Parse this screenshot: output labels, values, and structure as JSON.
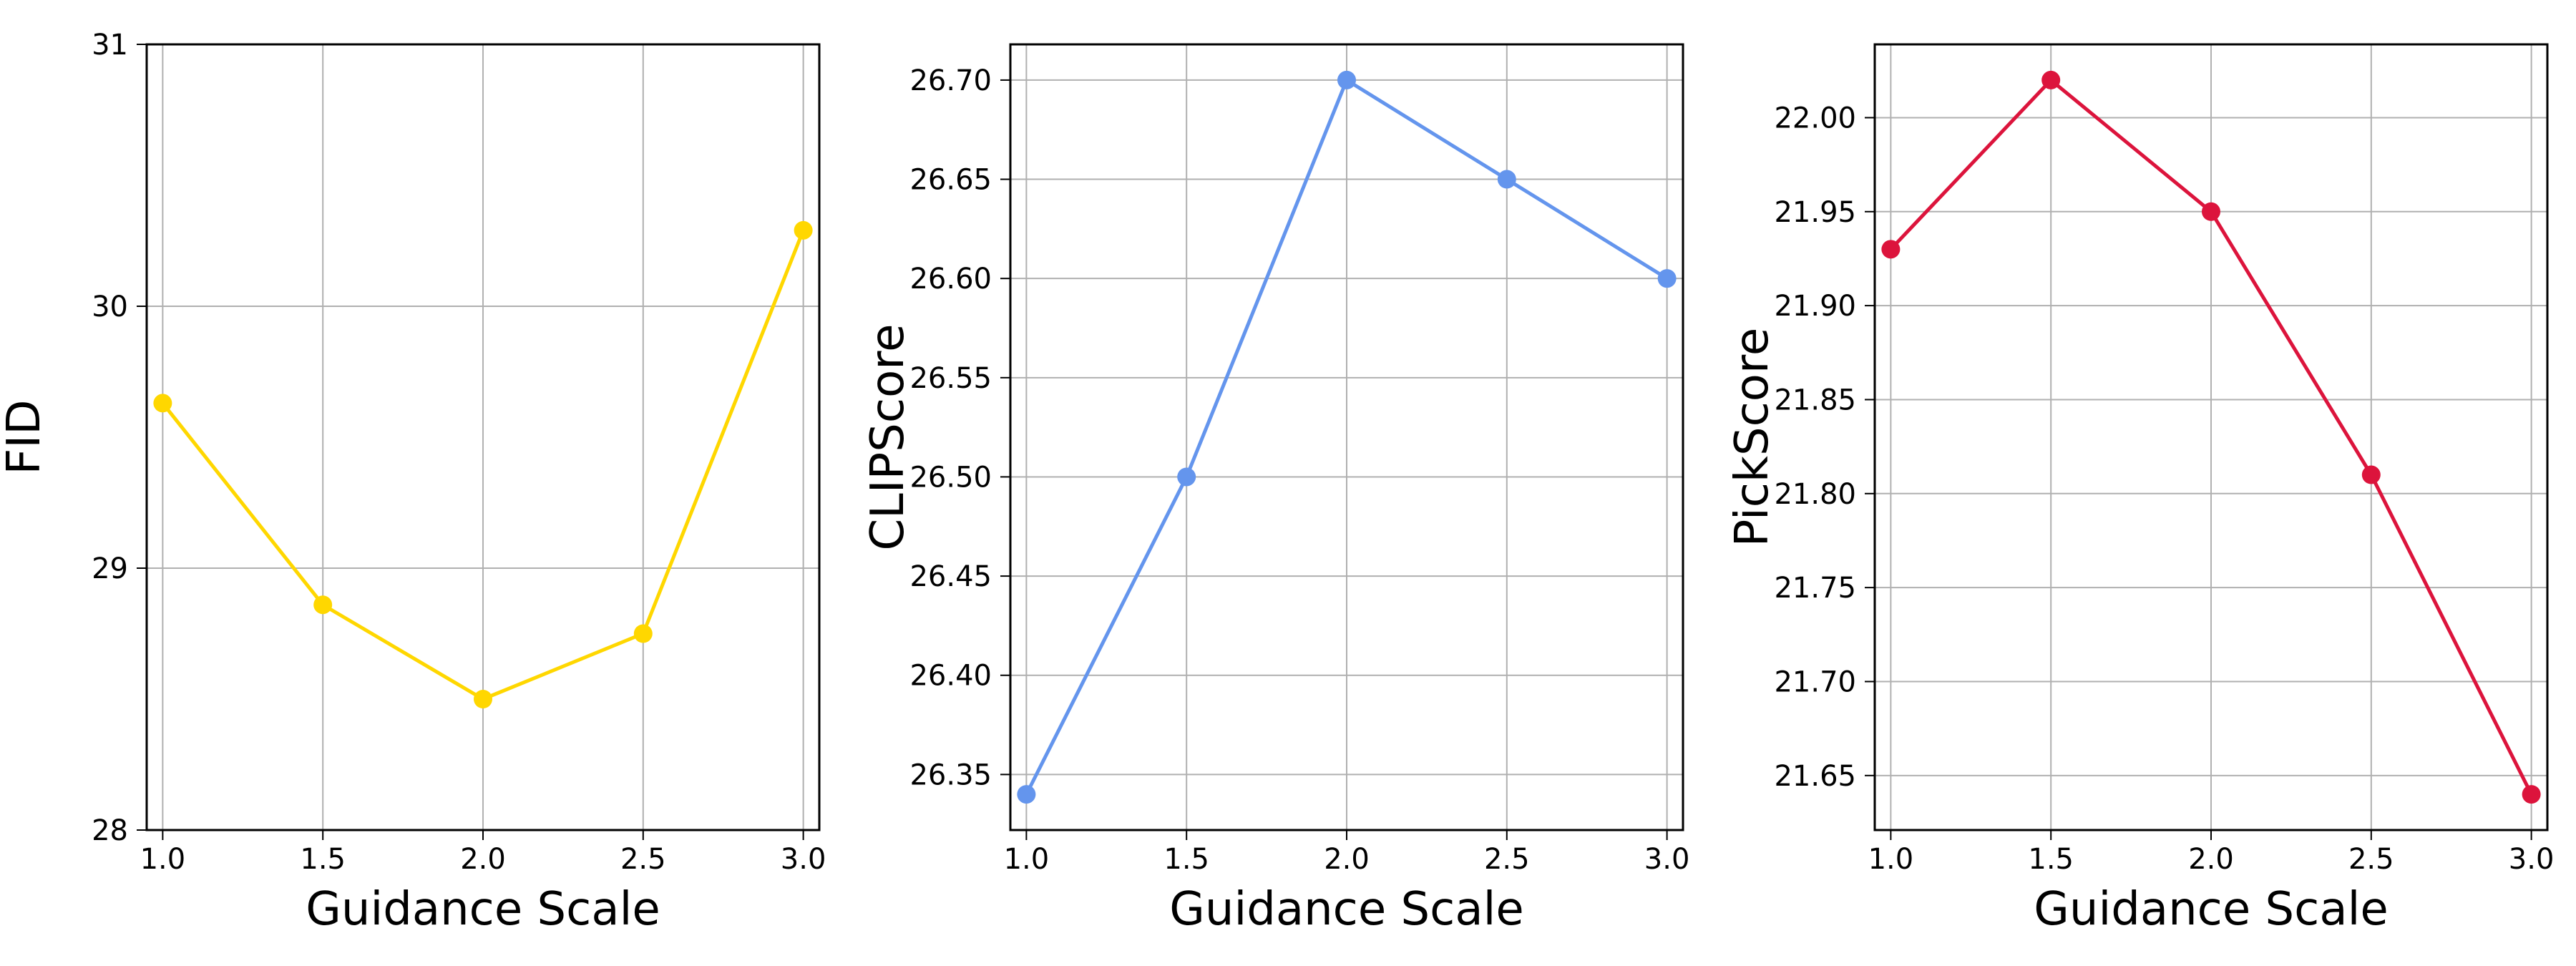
{
  "chart_data": [
    {
      "type": "line",
      "xlabel": "Guidance Scale",
      "ylabel": "FID",
      "x": [
        1.0,
        1.5,
        2.0,
        2.5,
        3.0
      ],
      "series": [
        {
          "values": [
            29.63,
            28.86,
            28.5,
            28.75,
            30.29
          ],
          "color": "#FFD700"
        }
      ],
      "xlim": [
        0.95,
        3.05
      ],
      "ylim": [
        28,
        31
      ],
      "xticks": [
        1.0,
        1.5,
        2.0,
        2.5,
        3.0
      ],
      "xtick_labels": [
        "1.0",
        "1.5",
        "2.0",
        "2.5",
        "3.0"
      ],
      "yticks": [
        28,
        29,
        30,
        31
      ],
      "ytick_labels": [
        "28",
        "29",
        "30",
        "31"
      ],
      "grid": true,
      "marker": "circle"
    },
    {
      "type": "line",
      "xlabel": "Guidance Scale",
      "ylabel": "CLIPScore",
      "x": [
        1.0,
        1.5,
        2.0,
        2.5,
        3.0
      ],
      "series": [
        {
          "values": [
            26.34,
            26.5,
            26.7,
            26.65,
            26.6
          ],
          "color": "#6495ED"
        }
      ],
      "xlim": [
        0.95,
        3.05
      ],
      "ylim": [
        26.322,
        26.718
      ],
      "xticks": [
        1.0,
        1.5,
        2.0,
        2.5,
        3.0
      ],
      "xtick_labels": [
        "1.0",
        "1.5",
        "2.0",
        "2.5",
        "3.0"
      ],
      "yticks": [
        26.35,
        26.4,
        26.45,
        26.5,
        26.55,
        26.6,
        26.65,
        26.7
      ],
      "ytick_labels": [
        "26.35",
        "26.40",
        "26.45",
        "26.50",
        "26.55",
        "26.60",
        "26.65",
        "26.70"
      ],
      "grid": true,
      "marker": "circle"
    },
    {
      "type": "line",
      "xlabel": "Guidance Scale",
      "ylabel": "PickScore",
      "x": [
        1.0,
        1.5,
        2.0,
        2.5,
        3.0
      ],
      "series": [
        {
          "values": [
            21.93,
            22.02,
            21.95,
            21.81,
            21.64
          ],
          "color": "#DC143C"
        }
      ],
      "xlim": [
        0.95,
        3.05
      ],
      "ylim": [
        21.621,
        22.039
      ],
      "xticks": [
        1.0,
        1.5,
        2.0,
        2.5,
        3.0
      ],
      "xtick_labels": [
        "1.0",
        "1.5",
        "2.0",
        "2.5",
        "3.0"
      ],
      "yticks": [
        21.65,
        21.7,
        21.75,
        21.8,
        21.85,
        21.9,
        21.95,
        22.0
      ],
      "ytick_labels": [
        "21.65",
        "21.70",
        "21.75",
        "21.80",
        "21.85",
        "21.90",
        "21.95",
        "22.00"
      ],
      "grid": true,
      "marker": "circle"
    }
  ]
}
